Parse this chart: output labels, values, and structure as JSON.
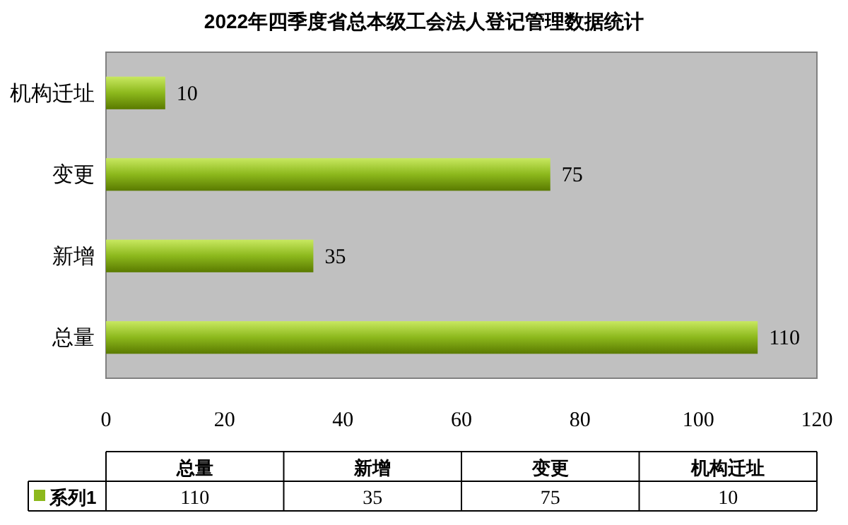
{
  "chart_data": {
    "type": "bar",
    "orientation": "horizontal",
    "title": "2022年四季度省总本级工会法人登记管理数据统计",
    "categories": [
      "机构迁址",
      "变更",
      "新增",
      "总量"
    ],
    "series": [
      {
        "name": "系列1",
        "color": "#8cb81c",
        "values": [
          10,
          75,
          35,
          110
        ]
      }
    ],
    "annotations": [
      "110",
      "35",
      "75",
      "10"
    ],
    "xlim": [
      0,
      120
    ],
    "xticks": [
      0,
      20,
      40,
      60,
      80,
      100,
      120
    ],
    "data_labels": true,
    "legend": "bottom",
    "grid": false
  }
}
